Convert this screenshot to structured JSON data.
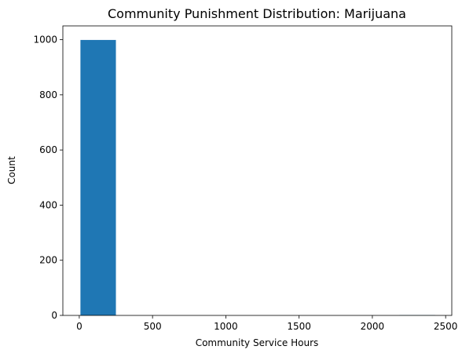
{
  "chart_data": {
    "type": "bar",
    "title": "Community Punishment Distribution: Marijuana",
    "xlabel": "Community Service Hours",
    "ylabel": "Count",
    "xlim": [
      -112,
      2542
    ],
    "ylim": [
      0,
      1050
    ],
    "xticks": [
      0,
      500,
      1000,
      1500,
      2000,
      2500
    ],
    "yticks": [
      0,
      200,
      400,
      600,
      800,
      1000
    ],
    "bins": [
      {
        "start": 8,
        "end": 250,
        "count": 999
      },
      {
        "start": 250,
        "end": 492,
        "count": 0
      },
      {
        "start": 492,
        "end": 734,
        "count": 0
      },
      {
        "start": 734,
        "end": 976,
        "count": 0
      },
      {
        "start": 976,
        "end": 1218,
        "count": 0
      },
      {
        "start": 1218,
        "end": 1460,
        "count": 0
      },
      {
        "start": 1460,
        "end": 1702,
        "count": 0
      },
      {
        "start": 1702,
        "end": 1944,
        "count": 0
      },
      {
        "start": 1944,
        "end": 2186,
        "count": 0
      },
      {
        "start": 2186,
        "end": 2428,
        "count": 1
      }
    ],
    "bar_color": "#1f77b4",
    "grid": false,
    "legend": "none"
  }
}
